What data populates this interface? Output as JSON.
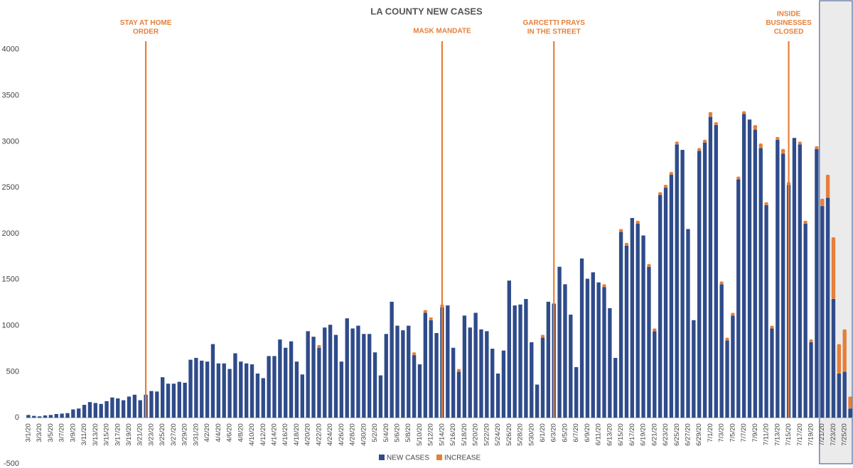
{
  "chart_data": {
    "type": "stacked_bar",
    "title": "LA COUNTY NEW CASES",
    "categories": [
      "3/1/20",
      null,
      "3/3/20",
      null,
      "3/5/20",
      null,
      "3/7/20",
      null,
      "3/9/20",
      null,
      "3/11/20",
      null,
      "3/13/20",
      null,
      "3/15/20",
      null,
      "3/17/20",
      null,
      "3/19/20",
      null,
      "3/21/20",
      null,
      "3/23/20",
      null,
      "3/25/20",
      null,
      "3/27/20",
      null,
      "3/29/20",
      null,
      "3/31/20",
      null,
      "4/2/20",
      null,
      "4/4/20",
      null,
      "4/6/20",
      null,
      "4/8/20",
      null,
      "4/10/20",
      null,
      "4/12/20",
      null,
      "4/14/20",
      null,
      "4/16/20",
      null,
      "4/18/20",
      null,
      "4/20/20",
      null,
      "4/22/20",
      null,
      "4/24/20",
      null,
      "4/26/20",
      null,
      "4/28/20",
      null,
      "4/30/20",
      null,
      "5/2/20",
      null,
      "5/4/20",
      null,
      "5/6/20",
      null,
      "5/8/20",
      null,
      "5/10/20",
      null,
      "5/12/20",
      null,
      "5/14/20",
      null,
      "5/16/20",
      null,
      "5/18/20",
      null,
      "5/20/20",
      null,
      "5/22/20",
      null,
      "5/24/20",
      null,
      "5/26/20",
      null,
      "5/28/20",
      null,
      "5/30/20",
      null,
      "6/1/20",
      null,
      "6/3/20",
      null,
      "6/5/20",
      null,
      "6/7/20",
      null,
      "6/9/20",
      null,
      "6/11/20",
      null,
      "6/13/20",
      null,
      "6/15/20",
      null,
      "6/17/20",
      null,
      "6/19/20",
      null,
      "6/21/20",
      null,
      "6/23/20",
      null,
      "6/25/20",
      null,
      "6/27/20",
      null,
      "6/29/20",
      null,
      "7/1/20",
      null,
      "7/3/20",
      null,
      "7/5/20",
      null,
      "7/7/20",
      null,
      "7/9/20",
      null,
      "7/11/20",
      null,
      "7/13/20",
      null,
      "7/15/20",
      null,
      "7/17/20",
      null,
      "7/19/20",
      null,
      "7/21/20",
      null,
      "7/23/20",
      null,
      "7/25/20",
      null
    ],
    "series": [
      {
        "name": "NEW CASES",
        "color": "#2f4b8a",
        "values": [
          30,
          20,
          15,
          25,
          30,
          40,
          45,
          50,
          90,
          100,
          140,
          170,
          160,
          150,
          180,
          220,
          210,
          190,
          230,
          250,
          190,
          250,
          290,
          285,
          440,
          370,
          370,
          390,
          380,
          630,
          650,
          620,
          610,
          800,
          590,
          590,
          530,
          700,
          610,
          590,
          580,
          480,
          430,
          670,
          670,
          850,
          760,
          830,
          610,
          470,
          940,
          880,
          760,
          980,
          1010,
          900,
          610,
          1080,
          970,
          1000,
          910,
          910,
          710,
          460,
          910,
          1260,
          1000,
          950,
          1000,
          680,
          580,
          1140,
          1060,
          920,
          1200,
          1220,
          760,
          500,
          1110,
          980,
          1140,
          960,
          940,
          750,
          480,
          730,
          1490,
          1220,
          1230,
          1290,
          820,
          360,
          870,
          1260,
          1240,
          1640,
          1450,
          1120,
          550,
          1730,
          1510,
          1580,
          1470,
          1420,
          1190,
          650,
          2020,
          1870,
          2170,
          2110,
          1980,
          1640,
          940,
          2420,
          2500,
          2640,
          2970,
          2910,
          2050,
          1060,
          2900,
          2990,
          3270,
          3180,
          1450,
          840,
          1110,
          2590,
          3300,
          3240,
          3130,
          2930,
          2310,
          970,
          3020,
          2870,
          2530,
          3040,
          2970,
          2110,
          820,
          2920,
          2300,
          2390,
          1290,
          480,
          500,
          100
        ]
      },
      {
        "name": "INCREASE",
        "color": "#e57f3a",
        "values": [
          0,
          0,
          0,
          0,
          0,
          0,
          0,
          0,
          0,
          0,
          0,
          0,
          0,
          0,
          0,
          0,
          0,
          0,
          0,
          0,
          0,
          0,
          0,
          0,
          0,
          0,
          0,
          0,
          0,
          0,
          0,
          0,
          0,
          0,
          0,
          0,
          0,
          0,
          0,
          0,
          0,
          0,
          0,
          0,
          0,
          0,
          0,
          0,
          0,
          0,
          0,
          0,
          30,
          0,
          0,
          0,
          0,
          0,
          0,
          0,
          0,
          0,
          0,
          0,
          0,
          0,
          0,
          0,
          0,
          30,
          0,
          30,
          30,
          0,
          30,
          0,
          0,
          30,
          0,
          0,
          0,
          0,
          0,
          0,
          0,
          0,
          0,
          0,
          0,
          0,
          0,
          0,
          30,
          0,
          0,
          0,
          0,
          0,
          0,
          0,
          0,
          0,
          0,
          30,
          0,
          0,
          30,
          30,
          0,
          30,
          0,
          30,
          30,
          30,
          30,
          30,
          30,
          0,
          0,
          0,
          30,
          30,
          50,
          30,
          30,
          30,
          30,
          30,
          30,
          0,
          50,
          50,
          30,
          30,
          30,
          50,
          30,
          0,
          30,
          30,
          30,
          30,
          80,
          250,
          670,
          320,
          460,
          130
        ]
      }
    ],
    "ylim": [
      -500,
      4500
    ],
    "yticks": [
      -500,
      0,
      500,
      1000,
      1500,
      2000,
      2500,
      3000,
      3500,
      4000
    ],
    "grid": false,
    "shaded_from": "7/21/20",
    "annotations": [
      {
        "lines": [
          "STAY AT HOME",
          "ORDER"
        ],
        "x": "3/22/20",
        "color": "#e57f3a"
      },
      {
        "lines": [
          "MASK MANDATE"
        ],
        "x": "5/14/20",
        "color": "#e57f3a"
      },
      {
        "lines": [
          "GARCETTI PRAYS",
          "IN THE STREET"
        ],
        "x": "6/3/20",
        "color": "#e57f3a"
      },
      {
        "lines": [
          "INSIDE",
          "BUSINESSES",
          "CLOSED"
        ],
        "x": "7/15/20",
        "color": "#e57f3a"
      }
    ]
  }
}
